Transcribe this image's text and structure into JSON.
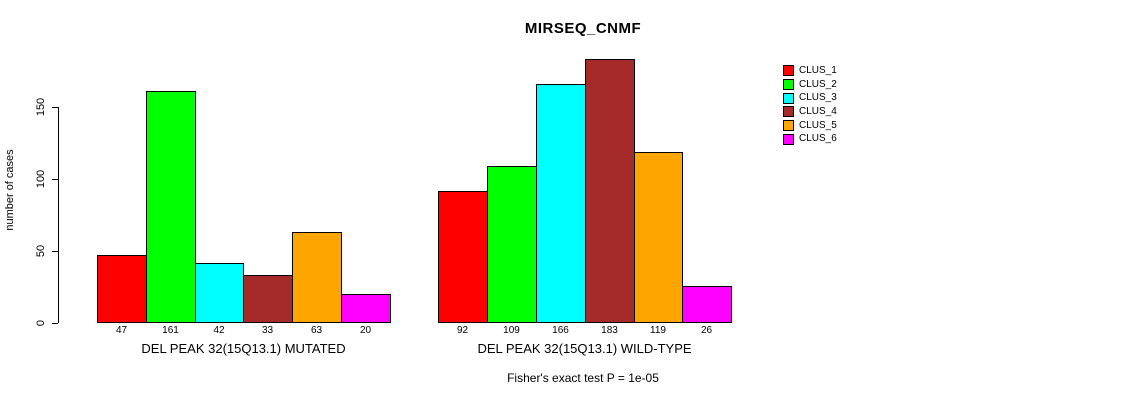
{
  "chart_data": {
    "type": "bar",
    "title": "MIRSEQ_CNMF",
    "xlabel": "",
    "ylabel": "number of cases",
    "ylim": [
      0,
      185
    ],
    "yticks": [
      0,
      50,
      100,
      150
    ],
    "grid": false,
    "legend_position": "right",
    "bar_value_labels": true,
    "categories": [
      "DEL PEAK 32(15Q13.1) MUTATED",
      "DEL PEAK 32(15Q13.1) WILD-TYPE"
    ],
    "series": [
      {
        "name": "CLUS_1",
        "color": "#FF0000",
        "values": [
          47,
          92
        ]
      },
      {
        "name": "CLUS_2",
        "color": "#00FF00",
        "values": [
          161,
          109
        ]
      },
      {
        "name": "CLUS_3",
        "color": "#00FFFF",
        "values": [
          42,
          166
        ]
      },
      {
        "name": "CLUS_4",
        "color": "#A52A2A",
        "values": [
          33,
          183
        ]
      },
      {
        "name": "CLUS_5",
        "color": "#FFA500",
        "values": [
          63,
          119
        ]
      },
      {
        "name": "CLUS_6",
        "color": "#FF00FF",
        "values": [
          20,
          26
        ]
      }
    ],
    "annotation": "Fisher's exact test P = 1e-05"
  }
}
